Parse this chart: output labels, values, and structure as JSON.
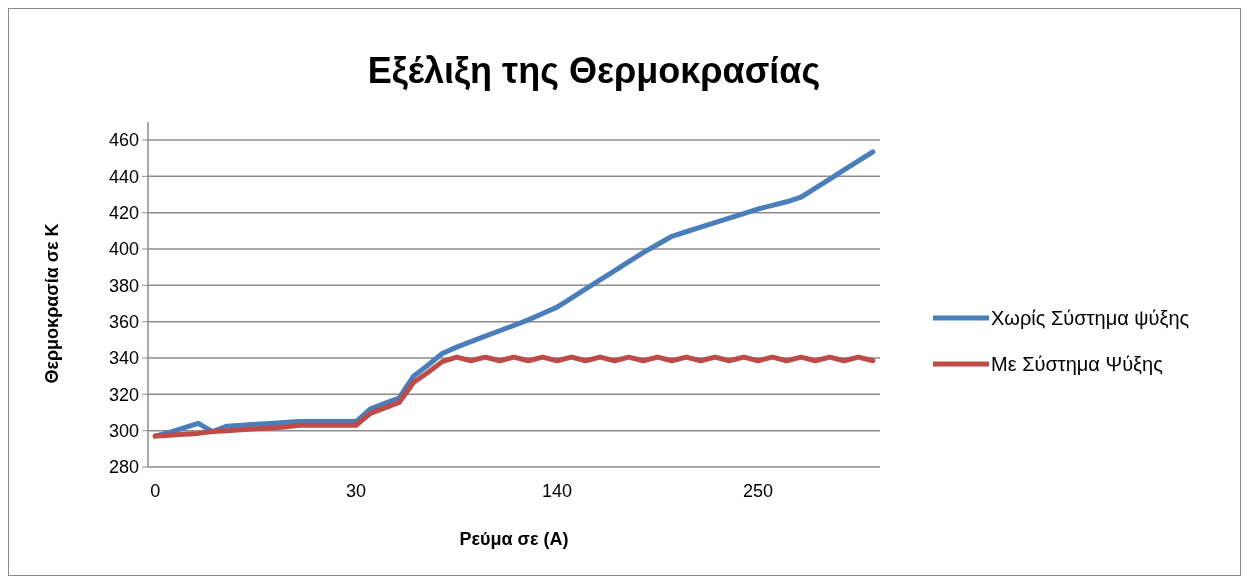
{
  "chart_data": {
    "type": "line",
    "title": "Εξέλιξη της Θερμοκρασίας",
    "xlabel": "Ρεύμα σε (A)",
    "ylabel": "Θερμοκρασία σε K",
    "categories": [
      "0",
      null,
      null,
      null,
      null,
      null,
      null,
      null,
      null,
      null,
      null,
      null,
      null,
      null,
      "30",
      null,
      null,
      null,
      null,
      null,
      null,
      null,
      null,
      null,
      null,
      null,
      null,
      null,
      "140",
      null,
      null,
      null,
      null,
      null,
      null,
      null,
      null,
      null,
      null,
      null,
      null,
      null,
      "250",
      null,
      null,
      null,
      null,
      null,
      null,
      null,
      null
    ],
    "series": [
      {
        "name": "Χωρίς Σύστημα ψύξης",
        "color": "#4a7ebb",
        "values": [
          297,
          299,
          301.5,
          304,
          299.5,
          302.5,
          303,
          303.5,
          304,
          304.5,
          305,
          305,
          305,
          305,
          305,
          312,
          315,
          318,
          330,
          336,
          342.5,
          346,
          349,
          352,
          355,
          358,
          361,
          364.5,
          368,
          373,
          378,
          383,
          388,
          393,
          398,
          402.5,
          407,
          409.5,
          412,
          414.5,
          417,
          419.5,
          422,
          424,
          426,
          428.5,
          433.5,
          438.5,
          443.5,
          448.5,
          453.5
        ]
      },
      {
        "name": "Με Σύστημα Ψύξης",
        "color": "#be4b48",
        "values": [
          297,
          297.5,
          298,
          298.5,
          299.5,
          300,
          300.5,
          301,
          301.5,
          302,
          303,
          303,
          303,
          303,
          303,
          309.5,
          312.5,
          315.5,
          326.5,
          332,
          338,
          340.5,
          338.5,
          340.5,
          338.5,
          340.5,
          338.5,
          340.5,
          338.5,
          340.5,
          338.5,
          340.5,
          338.5,
          340.5,
          338.5,
          340.5,
          338.5,
          340.5,
          338.5,
          340.5,
          338.5,
          340.5,
          338.5,
          340.5,
          338.5,
          340.5,
          338.5,
          340.5,
          338.5,
          340.5,
          338.5
        ]
      }
    ],
    "ylim": [
      280,
      460
    ],
    "yticks": [
      280,
      300,
      320,
      340,
      360,
      380,
      400,
      420,
      440,
      460
    ],
    "grid": "y",
    "legend": "right",
    "line_style": "solid",
    "marker": "none"
  }
}
